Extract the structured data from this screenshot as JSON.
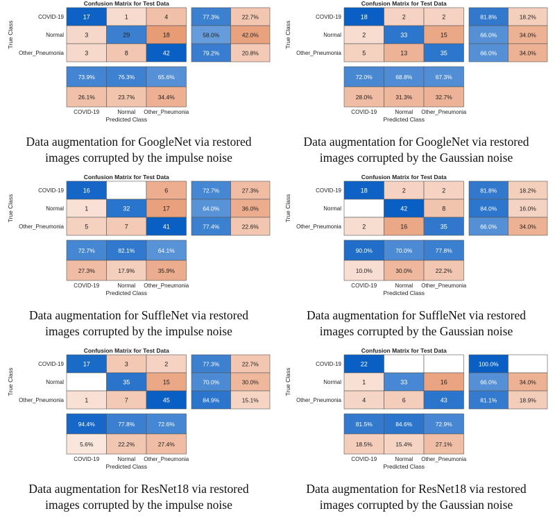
{
  "chart_data": [
    {
      "type": "heatmap",
      "title": "Confusion Matrix for Test Data",
      "ylabel": "True Class",
      "xlabel": "Predicted Class",
      "classes": [
        "COVID-19",
        "Normal",
        "Other_Pneumonia"
      ],
      "matrix": [
        [
          17,
          1,
          4
        ],
        [
          3,
          29,
          18
        ],
        [
          3,
          8,
          42
        ]
      ],
      "row_summary": [
        [
          "77.3%",
          "22.7%"
        ],
        [
          "58.0%",
          "42.0%"
        ],
        [
          "79.2%",
          "20.8%"
        ]
      ],
      "col_summary": [
        [
          "73.9%",
          "76.3%",
          "65.6%"
        ],
        [
          "26.1%",
          "23.7%",
          "34.4%"
        ]
      ],
      "caption": [
        "Data augmentation for GoogleNet via restored",
        "images corrupted by the impulse noise"
      ]
    },
    {
      "type": "heatmap",
      "title": "Confusion Matrix for Test Data",
      "ylabel": "True Class",
      "xlabel": "Predicted Class",
      "classes": [
        "COVID-19",
        "Normal",
        "Other_Pneumonia"
      ],
      "matrix": [
        [
          18,
          2,
          2
        ],
        [
          2,
          33,
          15
        ],
        [
          5,
          13,
          35
        ]
      ],
      "row_summary": [
        [
          "81.8%",
          "18.2%"
        ],
        [
          "66.0%",
          "34.0%"
        ],
        [
          "66.0%",
          "34.0%"
        ]
      ],
      "col_summary": [
        [
          "72.0%",
          "68.8%",
          "67.3%"
        ],
        [
          "28.0%",
          "31.3%",
          "32.7%"
        ]
      ],
      "caption": [
        "Data augmentation for GoogleNet via restored",
        "images corrupted by the Gaussian noise"
      ]
    },
    {
      "type": "heatmap",
      "title": "Confusion Matrix for Test Data",
      "ylabel": "True Class",
      "xlabel": "Predicted Class",
      "classes": [
        "COVID-19",
        "Normal",
        "Other_Pneumonia"
      ],
      "matrix": [
        [
          16,
          0,
          6
        ],
        [
          1,
          32,
          17
        ],
        [
          5,
          7,
          41
        ]
      ],
      "row_summary": [
        [
          "72.7%",
          "27.3%"
        ],
        [
          "64.0%",
          "36.0%"
        ],
        [
          "77.4%",
          "22.6%"
        ]
      ],
      "col_summary": [
        [
          "72.7%",
          "82.1%",
          "64.1%"
        ],
        [
          "27.3%",
          "17.9%",
          "35.9%"
        ]
      ],
      "caption": [
        "Data augmentation for SuffleNet via restored",
        "images corrupted by the impulse noise"
      ]
    },
    {
      "type": "heatmap",
      "title": "Confusion Matrix for Test Data",
      "ylabel": "True Class",
      "xlabel": "Predicted Class",
      "classes": [
        "COVID-19",
        "Normal",
        "Other_Pneumonia"
      ],
      "matrix": [
        [
          18,
          2,
          2
        ],
        [
          0,
          42,
          8
        ],
        [
          2,
          16,
          35
        ]
      ],
      "row_summary": [
        [
          "81.8%",
          "18.2%"
        ],
        [
          "84.0%",
          "16.0%"
        ],
        [
          "66.0%",
          "34.0%"
        ]
      ],
      "col_summary": [
        [
          "90.0%",
          "70.0%",
          "77.8%"
        ],
        [
          "10.0%",
          "30.0%",
          "22.2%"
        ]
      ],
      "caption": [
        "Data augmentation for SuffleNet via restored",
        "images corrupted by the Gaussian noise"
      ]
    },
    {
      "type": "heatmap",
      "title": "Confusion Matrix for Test Data",
      "ylabel": "True Class",
      "xlabel": "Predicted Class",
      "classes": [
        "COVID-19",
        "Normal",
        "Other_Pneumonia"
      ],
      "matrix": [
        [
          17,
          3,
          2
        ],
        [
          0,
          35,
          15
        ],
        [
          1,
          7,
          45
        ]
      ],
      "row_summary": [
        [
          "77.3%",
          "22.7%"
        ],
        [
          "70.0%",
          "30.0%"
        ],
        [
          "84.9%",
          "15.1%"
        ]
      ],
      "col_summary": [
        [
          "94.4%",
          "77.8%",
          "72.6%"
        ],
        [
          "5.6%",
          "22.2%",
          "27.4%"
        ]
      ],
      "caption": [
        "Data augmentation for ResNet18 via restored",
        "images corrupted by the impulse noise"
      ]
    },
    {
      "type": "heatmap",
      "title": "Confusion Matrix for Test Data",
      "ylabel": "True Class",
      "xlabel": "Predicted Class",
      "classes": [
        "COVID-19",
        "Normal",
        "Other_Pneumonia"
      ],
      "matrix": [
        [
          22,
          0,
          0
        ],
        [
          1,
          33,
          16
        ],
        [
          4,
          6,
          43
        ]
      ],
      "row_summary": [
        [
          "100.0%",
          ""
        ],
        [
          "66.0%",
          "34.0%"
        ],
        [
          "81.1%",
          "18.9%"
        ]
      ],
      "col_summary": [
        [
          "81.5%",
          "84.6%",
          "72.9%"
        ],
        [
          "18.5%",
          "15.4%",
          "27.1%"
        ]
      ],
      "caption": [
        "Data augmentation for ResNet18 via restored",
        "images corrupted by the Gaussian noise"
      ]
    }
  ]
}
